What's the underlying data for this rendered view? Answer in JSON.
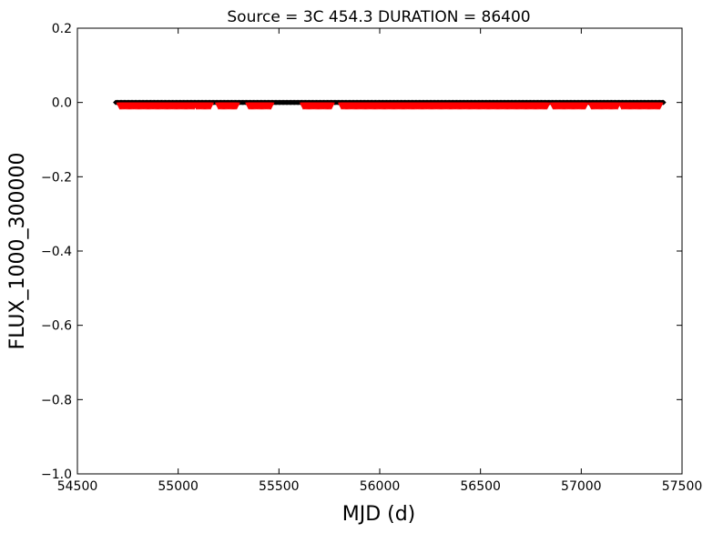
{
  "chart_data": {
    "type": "scatter",
    "title": "Source = 3C 454.3 DURATION = 86400",
    "xlabel": "MJD (d)",
    "ylabel": "FLUX_1000_300000",
    "xlim": [
      54500,
      57500
    ],
    "ylim": [
      -1.0,
      0.2
    ],
    "xticks": [
      54500,
      55000,
      55500,
      56000,
      56500,
      57000,
      57500
    ],
    "yticks": [
      -1.0,
      -0.8,
      -0.6,
      -0.4,
      -0.2,
      0.0,
      0.2
    ],
    "xtick_labels": [
      "54500",
      "55000",
      "55500",
      "56000",
      "56500",
      "57000",
      "57500"
    ],
    "ytick_labels": [
      "−1.0",
      "−0.8",
      "−0.6",
      "−0.4",
      "−0.2",
      "0.0",
      "0.2"
    ],
    "grid": false,
    "legend": false,
    "series": [
      {
        "color": "#000000",
        "marker": "diamond",
        "x_range": [
          54690,
          57410
        ],
        "y_value": 0.0
      },
      {
        "color": "#ff0000",
        "marker": "triangle-down",
        "segments": [
          [
            54710,
            55080
          ],
          [
            55090,
            55160
          ],
          [
            55200,
            55290
          ],
          [
            55350,
            55460
          ],
          [
            55620,
            55760
          ],
          [
            55810,
            56830
          ],
          [
            56860,
            57020
          ],
          [
            57050,
            57180
          ],
          [
            57200,
            57390
          ]
        ],
        "y_value": -0.01
      }
    ]
  }
}
